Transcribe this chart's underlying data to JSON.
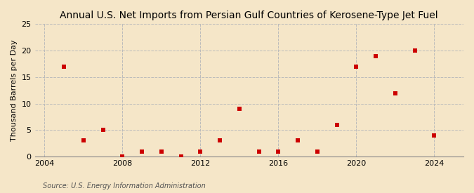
{
  "title": "Annual U.S. Net Imports from Persian Gulf Countries of Kerosene-Type Jet Fuel",
  "ylabel": "Thousand Barrels per Day",
  "source": "Source: U.S. Energy Information Administration",
  "background_color": "#f5e6c8",
  "plot_bg_color": "#f5e6c8",
  "years": [
    2005,
    2006,
    2007,
    2008,
    2009,
    2010,
    2011,
    2012,
    2013,
    2014,
    2015,
    2016,
    2017,
    2018,
    2019,
    2020,
    2021,
    2022,
    2023,
    2024
  ],
  "values": [
    17,
    3,
    5,
    0,
    1,
    1,
    0,
    1,
    3,
    9,
    1,
    1,
    3,
    1,
    6,
    17,
    19,
    12,
    20,
    4
  ],
  "marker_color": "#cc0000",
  "marker": "s",
  "marker_size": 4,
  "xlim": [
    2003.5,
    2025.5
  ],
  "ylim": [
    0,
    25
  ],
  "yticks": [
    0,
    5,
    10,
    15,
    20,
    25
  ],
  "xticks": [
    2004,
    2008,
    2012,
    2016,
    2020,
    2024
  ],
  "grid_color": "#bbbbbb",
  "title_fontsize": 10,
  "label_fontsize": 8,
  "tick_fontsize": 8,
  "source_fontsize": 7
}
